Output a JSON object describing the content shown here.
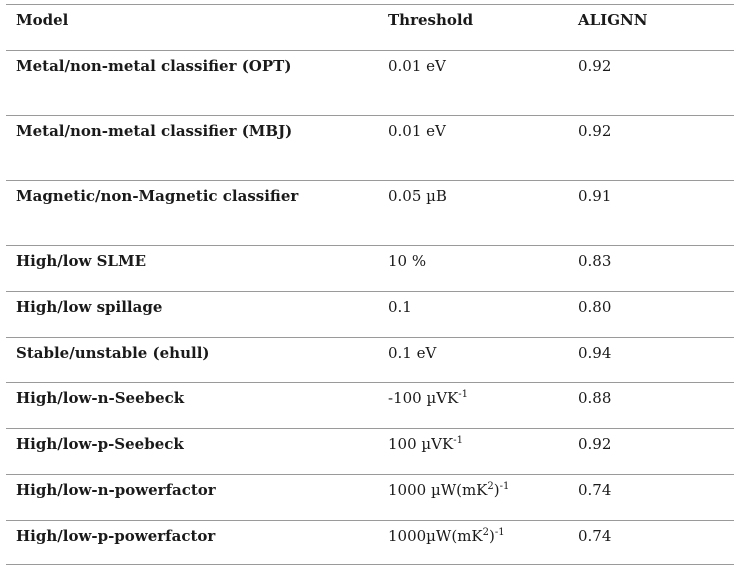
{
  "table": {
    "headers": [
      "Model",
      "Threshold",
      "ALIGNN"
    ],
    "rows": [
      {
        "model": "Metal/non-metal classifier (OPT)",
        "threshold": "0.01 eV",
        "threshold_sup": "",
        "threshold_tail": "",
        "alignn": "0.92"
      },
      {
        "model": "Metal/non-metal classifier (MBJ)",
        "threshold": "0.01 eV",
        "threshold_sup": "",
        "threshold_tail": "",
        "alignn": "0.92"
      },
      {
        "model": "Magnetic/non-Magnetic classifier",
        "threshold": "0.05 µB",
        "threshold_sup": "",
        "threshold_tail": "",
        "alignn": "0.91"
      },
      {
        "model": "High/low SLME",
        "threshold": "10 %",
        "threshold_sup": "",
        "threshold_tail": "",
        "alignn": "0.83"
      },
      {
        "model": "High/low spillage",
        "threshold": "0.1",
        "threshold_sup": "",
        "threshold_tail": "",
        "alignn": "0.80"
      },
      {
        "model": "Stable/unstable (ehull)",
        "threshold": "0.1 eV",
        "threshold_sup": "",
        "threshold_tail": "",
        "alignn": "0.94"
      },
      {
        "model": "High/low-n-Seebeck",
        "threshold": "-100 µVK",
        "threshold_sup": "-1",
        "threshold_tail": "",
        "alignn": "0.88"
      },
      {
        "model": "High/low-p-Seebeck",
        "threshold": "100 µVK",
        "threshold_sup": "-1",
        "threshold_tail": "",
        "alignn": "0.92"
      },
      {
        "model": "High/low-n-powerfactor",
        "threshold": "1000 µW(mK",
        "threshold_sup": "2",
        "threshold_tail": ")",
        "threshold_sup2": "-1",
        "alignn": "0.74"
      },
      {
        "model": "High/low-p-powerfactor",
        "threshold": "1000µW(mK",
        "threshold_sup": "2",
        "threshold_tail": ")",
        "threshold_sup2": "-1",
        "alignn": "0.74"
      }
    ]
  }
}
